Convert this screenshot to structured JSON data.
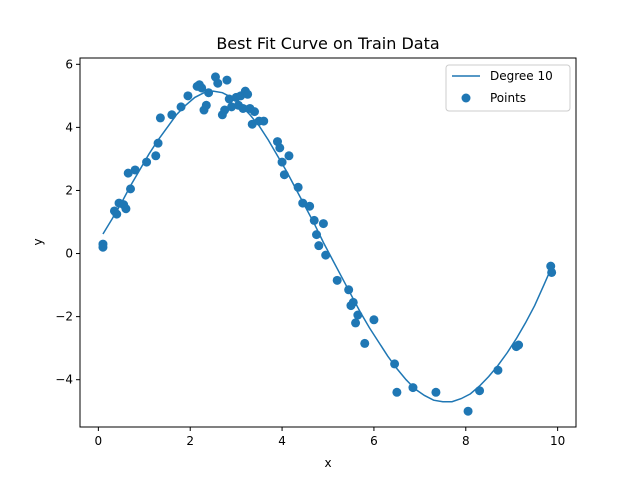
{
  "chart_data": {
    "type": "scatter",
    "title": "Best Fit Curve on Train Data",
    "xlabel": "x",
    "ylabel": "y",
    "xlim": [
      -0.4,
      10.4
    ],
    "ylim": [
      -5.5,
      6.2
    ],
    "xticks": [
      0,
      2,
      4,
      6,
      8,
      10
    ],
    "yticks": [
      -4,
      -2,
      0,
      2,
      4,
      6
    ],
    "xtick_labels": [
      "0",
      "2",
      "4",
      "6",
      "8",
      "10"
    ],
    "ytick_labels": [
      "−4",
      "−2",
      "0",
      "2",
      "4",
      "6"
    ],
    "grid": false,
    "legend_position": "top-right",
    "color": "#1f77b4",
    "series": [
      {
        "name": "Degree 10",
        "kind": "line",
        "x": [
          0.1,
          0.3,
          0.5,
          0.7,
          0.9,
          1.1,
          1.3,
          1.5,
          1.7,
          1.9,
          2.1,
          2.3,
          2.5,
          2.7,
          2.9,
          3.1,
          3.3,
          3.5,
          3.7,
          3.9,
          4.1,
          4.3,
          4.5,
          4.7,
          4.9,
          5.1,
          5.3,
          5.5,
          5.7,
          5.9,
          6.1,
          6.3,
          6.5,
          6.7,
          6.9,
          7.1,
          7.3,
          7.5,
          7.7,
          7.9,
          8.1,
          8.3,
          8.5,
          8.7,
          8.9,
          9.1,
          9.3,
          9.5,
          9.7,
          9.85
        ],
        "y": [
          0.62,
          1.1,
          1.6,
          2.15,
          2.65,
          3.15,
          3.6,
          4.0,
          4.4,
          4.7,
          4.95,
          5.1,
          5.15,
          5.1,
          4.95,
          4.7,
          4.4,
          4.05,
          3.6,
          3.1,
          2.6,
          2.05,
          1.5,
          0.95,
          0.35,
          -0.2,
          -0.75,
          -1.3,
          -1.85,
          -2.35,
          -2.8,
          -3.25,
          -3.65,
          -4.0,
          -4.3,
          -4.5,
          -4.65,
          -4.7,
          -4.7,
          -4.6,
          -4.45,
          -4.2,
          -3.9,
          -3.55,
          -3.15,
          -2.7,
          -2.2,
          -1.65,
          -1.0,
          -0.5
        ]
      },
      {
        "name": "Points",
        "kind": "scatter",
        "x": [
          0.1,
          0.1,
          0.35,
          0.4,
          0.45,
          0.55,
          0.6,
          0.65,
          0.7,
          0.8,
          1.05,
          1.25,
          1.3,
          1.35,
          1.6,
          1.8,
          1.95,
          2.15,
          2.2,
          2.25,
          2.3,
          2.35,
          2.4,
          2.55,
          2.6,
          2.7,
          2.75,
          2.8,
          2.85,
          2.9,
          3.0,
          3.05,
          3.1,
          3.15,
          3.2,
          3.25,
          3.3,
          3.35,
          3.4,
          3.5,
          3.6,
          3.9,
          3.95,
          4.0,
          4.05,
          4.15,
          4.35,
          4.45,
          4.6,
          4.7,
          4.75,
          4.8,
          4.9,
          4.95,
          5.2,
          5.45,
          5.5,
          5.55,
          5.6,
          5.65,
          5.8,
          6.0,
          6.45,
          6.5,
          6.85,
          7.35,
          8.05,
          8.3,
          8.7,
          9.1,
          9.15,
          9.85,
          9.87
        ],
        "y": [
          0.3,
          0.2,
          1.35,
          1.25,
          1.6,
          1.55,
          1.42,
          2.55,
          2.05,
          2.65,
          2.9,
          3.1,
          3.5,
          4.3,
          4.4,
          4.65,
          5.0,
          5.3,
          5.35,
          5.25,
          4.55,
          4.7,
          5.1,
          5.6,
          5.4,
          4.4,
          4.55,
          5.5,
          4.9,
          4.65,
          4.95,
          4.7,
          5.0,
          4.6,
          5.15,
          5.05,
          4.6,
          4.1,
          4.5,
          4.2,
          4.2,
          3.55,
          3.35,
          2.9,
          2.5,
          3.1,
          2.1,
          1.6,
          1.5,
          1.05,
          0.6,
          0.25,
          0.95,
          -0.05,
          -0.85,
          -1.15,
          -1.65,
          -1.55,
          -2.2,
          -1.95,
          -2.85,
          -2.1,
          -3.5,
          -4.4,
          -4.25,
          -4.4,
          -5.0,
          -4.35,
          -3.7,
          -2.95,
          -2.9,
          -0.4,
          -0.6
        ]
      }
    ]
  }
}
